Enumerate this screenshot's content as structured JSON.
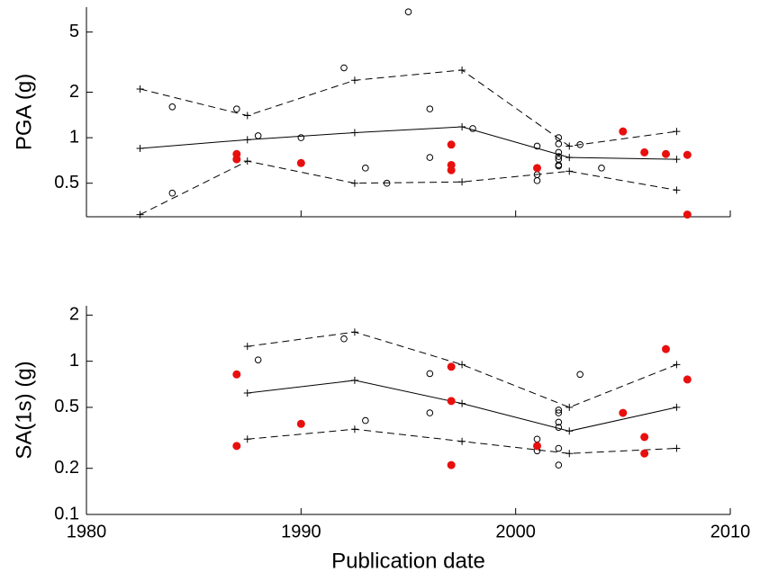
{
  "chart_data": [
    {
      "type": "line",
      "ylabel": "PGA (g)",
      "log_y": true,
      "xlim": [
        1980,
        2010
      ],
      "xticks": [
        1980,
        1990,
        2000,
        2010
      ],
      "ylim": [
        0.3,
        7.3
      ],
      "yticks": [
        0.5,
        1,
        2,
        5
      ],
      "series": [
        {
          "line": "solid",
          "marker": "plus",
          "color": "#000000",
          "x": [
            1982.5,
            1987.5,
            1992.5,
            1997.5,
            2002.5,
            2007.5
          ],
          "values": [
            0.85,
            0.97,
            1.08,
            1.18,
            0.74,
            0.72
          ]
        },
        {
          "line": "dashed",
          "marker": "plus",
          "color": "#000000",
          "x": [
            1982.5,
            1987.5,
            1992.5,
            1997.5,
            2002.5,
            2007.5
          ],
          "values": [
            2.1,
            1.4,
            2.4,
            2.8,
            0.88,
            1.1
          ]
        },
        {
          "line": "dashed",
          "marker": "plus",
          "color": "#000000",
          "x": [
            1982.5,
            1987.5,
            1992.5,
            1997.5,
            2002.5,
            2007.5
          ],
          "values": [
            0.31,
            0.7,
            0.5,
            0.51,
            0.6,
            0.45
          ]
        },
        {
          "line": "none",
          "marker": "circle",
          "color": "#000000",
          "x": [
            1984,
            1984,
            1987,
            1988,
            1990,
            1992,
            1993,
            1994,
            1995,
            1996,
            1996,
            1998,
            2001,
            2001,
            2001,
            2002,
            2002,
            2002,
            2002,
            2002,
            2002,
            2002,
            2003,
            2004
          ],
          "values": [
            1.6,
            0.43,
            1.55,
            1.03,
            1.0,
            2.9,
            0.63,
            0.5,
            6.8,
            1.55,
            0.74,
            1.15,
            0.88,
            0.57,
            0.52,
            1.0,
            0.91,
            0.8,
            0.75,
            0.72,
            0.66,
            0.65,
            0.9,
            0.63
          ]
        },
        {
          "line": "none",
          "marker": "filled-circle",
          "color": "#e8100e",
          "x": [
            1987,
            1987,
            1990,
            1997,
            1997,
            1997,
            2001,
            2005,
            2006,
            2007,
            2008,
            2008
          ],
          "values": [
            0.78,
            0.72,
            0.68,
            0.9,
            0.66,
            0.61,
            0.63,
            1.1,
            0.8,
            0.78,
            0.77,
            0.31
          ]
        }
      ]
    },
    {
      "type": "line",
      "ylabel": "SA(1s) (g)",
      "xlabel": "Publication date",
      "log_y": true,
      "xlim": [
        1980,
        2010
      ],
      "xticks": [
        1980,
        1990,
        2000,
        2010
      ],
      "ylim": [
        0.1,
        2.3
      ],
      "yticks": [
        0.1,
        0.2,
        0.5,
        1,
        2
      ],
      "series": [
        {
          "line": "solid",
          "marker": "plus",
          "color": "#000000",
          "x": [
            1987.5,
            1992.5,
            1997.5,
            2002.5,
            2007.5
          ],
          "values": [
            0.62,
            0.75,
            0.53,
            0.35,
            0.5
          ]
        },
        {
          "line": "dashed",
          "marker": "plus",
          "color": "#000000",
          "x": [
            1987.5,
            1992.5,
            1997.5,
            2002.5,
            2007.5
          ],
          "values": [
            1.25,
            1.55,
            0.95,
            0.5,
            0.95
          ]
        },
        {
          "line": "dashed",
          "marker": "plus",
          "color": "#000000",
          "x": [
            1987.5,
            1992.5,
            1997.5,
            2002.5,
            2007.5
          ],
          "values": [
            0.31,
            0.36,
            0.3,
            0.25,
            0.27
          ]
        },
        {
          "line": "none",
          "marker": "circle",
          "color": "#000000",
          "x": [
            1988,
            1992,
            1993,
            1996,
            1996,
            2001,
            2001,
            2002,
            2002,
            2002,
            2002,
            2002,
            2002,
            2003
          ],
          "values": [
            1.02,
            1.4,
            0.41,
            0.83,
            0.46,
            0.31,
            0.26,
            0.48,
            0.46,
            0.4,
            0.37,
            0.27,
            0.21,
            0.82
          ]
        },
        {
          "line": "none",
          "marker": "filled-circle",
          "color": "#e8100e",
          "x": [
            1987,
            1987,
            1990,
            1997,
            1997,
            1997,
            2001,
            2005,
            2006,
            2006,
            2007,
            2008
          ],
          "values": [
            0.82,
            0.28,
            0.39,
            0.92,
            0.55,
            0.21,
            0.28,
            0.46,
            0.32,
            0.25,
            1.2,
            0.76
          ]
        }
      ]
    }
  ]
}
